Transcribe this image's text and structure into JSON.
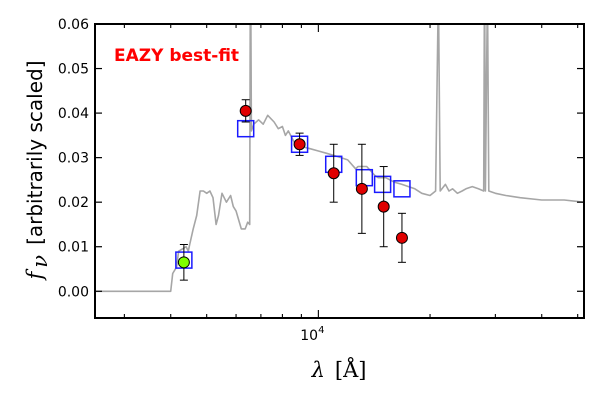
{
  "chart_data": {
    "type": "scatter",
    "annotation": "EAZY best-fit",
    "xlabel_sym": "λ",
    "xlabel_unit": "[Å]",
    "ylabel_sym": "f",
    "ylabel_sub": "ν",
    "ylabel_text": "[arbitrarily scaled]",
    "x_scale": "log",
    "x_tick_label": "10",
    "x_tick_label_exp": "4",
    "xlim": [
      2500,
      52000
    ],
    "ylim": [
      -0.006,
      0.06
    ],
    "yticks": [
      "0.00",
      "0.01",
      "0.02",
      "0.03",
      "0.04",
      "0.05",
      "0.06"
    ],
    "colors": {
      "sed": "#a6a6a6",
      "observed": "#e00000",
      "highlighted": "#7fff00",
      "model": "#1a1aff"
    },
    "series": [
      {
        "kind": "sed-line",
        "points": [
          [
            2500,
            0.0
          ],
          [
            3950,
            0.0
          ],
          [
            4000,
            0.0
          ],
          [
            4050,
            0.004
          ],
          [
            4150,
            0.0055
          ],
          [
            4200,
            0.009
          ],
          [
            4300,
            0.0095
          ],
          [
            4400,
            0.01
          ],
          [
            4460,
            0.009
          ],
          [
            4500,
            0.0105
          ],
          [
            4600,
            0.014
          ],
          [
            4700,
            0.017
          ],
          [
            4800,
            0.0225
          ],
          [
            4900,
            0.0225
          ],
          [
            5000,
            0.022
          ],
          [
            5100,
            0.0225
          ],
          [
            5200,
            0.021
          ],
          [
            5300,
            0.015
          ],
          [
            5380,
            0.017
          ],
          [
            5500,
            0.022
          ],
          [
            5650,
            0.02
          ],
          [
            5800,
            0.0215
          ],
          [
            5900,
            0.019
          ],
          [
            6000,
            0.018
          ],
          [
            6200,
            0.014
          ],
          [
            6350,
            0.014
          ],
          [
            6450,
            0.0155
          ],
          [
            6530,
            0.015
          ],
          [
            6550,
            0.06
          ],
          [
            6580,
            0.06
          ],
          [
            6600,
            0.036
          ],
          [
            6700,
            0.0375
          ],
          [
            6900,
            0.0385
          ],
          [
            7100,
            0.0375
          ],
          [
            7300,
            0.0395
          ],
          [
            7600,
            0.038
          ],
          [
            7800,
            0.0365
          ],
          [
            8000,
            0.037
          ],
          [
            8150,
            0.035
          ],
          [
            8300,
            0.036
          ],
          [
            8600,
            0.0335
          ],
          [
            8800,
            0.034
          ],
          [
            9000,
            0.0325
          ],
          [
            9500,
            0.032
          ],
          [
            10000,
            0.0315
          ],
          [
            10500,
            0.031
          ],
          [
            11000,
            0.0305
          ],
          [
            11500,
            0.03
          ],
          [
            12000,
            0.0295
          ],
          [
            12600,
            0.0275
          ],
          [
            12800,
            0.028
          ],
          [
            13500,
            0.028
          ],
          [
            14200,
            0.026
          ],
          [
            14500,
            0.0255
          ],
          [
            15200,
            0.0255
          ],
          [
            16000,
            0.0245
          ],
          [
            16800,
            0.024
          ],
          [
            17500,
            0.0235
          ],
          [
            18200,
            0.023
          ],
          [
            19000,
            0.022
          ],
          [
            20000,
            0.0215
          ],
          [
            20700,
            0.0225
          ],
          [
            21000,
            0.06
          ],
          [
            21100,
            0.06
          ],
          [
            21300,
            0.0225
          ],
          [
            22000,
            0.024
          ],
          [
            22500,
            0.0225
          ],
          [
            23000,
            0.023
          ],
          [
            23700,
            0.022
          ],
          [
            24400,
            0.0225
          ],
          [
            25000,
            0.023
          ],
          [
            26000,
            0.0235
          ],
          [
            27000,
            0.023
          ],
          [
            27900,
            0.0225
          ],
          [
            28000,
            0.06
          ],
          [
            28100,
            0.06
          ],
          [
            28200,
            0.0225
          ],
          [
            28500,
            0.06
          ],
          [
            28600,
            0.06
          ],
          [
            28800,
            0.0225
          ],
          [
            30000,
            0.022
          ],
          [
            32000,
            0.0215
          ],
          [
            35000,
            0.021
          ],
          [
            40000,
            0.0205
          ],
          [
            46000,
            0.0205
          ],
          [
            52000,
            0.02
          ]
        ]
      },
      {
        "kind": "observed",
        "points": [
          {
            "x": 4340,
            "y": 0.0065,
            "yerr": [
              0.004,
              0.004
            ],
            "highlight": true
          },
          {
            "x": 6370,
            "y": 0.0405,
            "yerr": [
              0.0025,
              0.0025
            ]
          },
          {
            "x": 8900,
            "y": 0.033,
            "yerr": [
              0.0025,
              0.0025
            ]
          },
          {
            "x": 11000,
            "y": 0.0265,
            "yerr": [
              0.0065,
              0.0065
            ]
          },
          {
            "x": 13100,
            "y": 0.023,
            "yerr": [
              0.01,
              0.01
            ]
          },
          {
            "x": 15000,
            "y": 0.019,
            "yerr": [
              0.009,
              0.009
            ]
          },
          {
            "x": 16800,
            "y": 0.012,
            "yerr": [
              0.0055,
              0.0055
            ]
          }
        ]
      },
      {
        "kind": "model-photometry",
        "points": [
          {
            "x": 4340,
            "y": 0.007
          },
          {
            "x": 6370,
            "y": 0.0365
          },
          {
            "x": 8900,
            "y": 0.033
          },
          {
            "x": 11000,
            "y": 0.0285
          },
          {
            "x": 13300,
            "y": 0.0255
          },
          {
            "x": 14900,
            "y": 0.024
          },
          {
            "x": 16800,
            "y": 0.023
          }
        ]
      }
    ]
  }
}
